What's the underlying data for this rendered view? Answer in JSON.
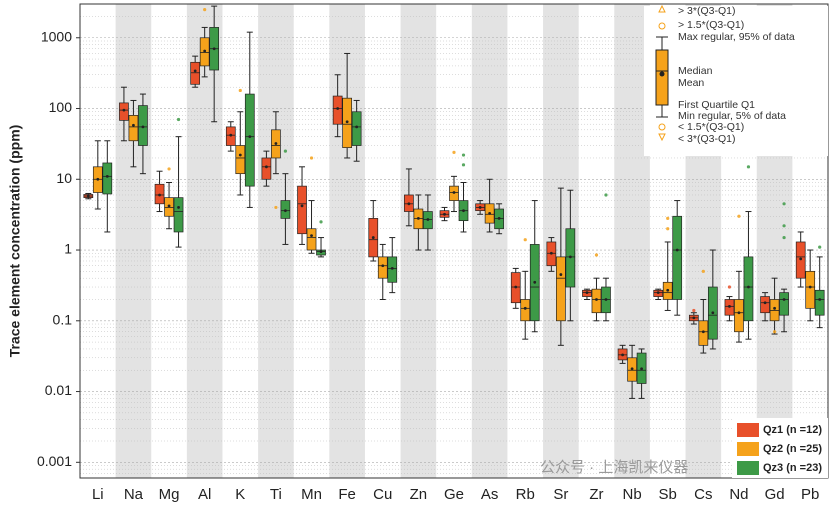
{
  "chart_data": {
    "type": "box",
    "y_label": "Trace element concentration (ppm)",
    "log_scale": true,
    "grid": true,
    "minor_grid": true,
    "legend_position": "lower right",
    "ylim": [
      0.0006,
      3000
    ],
    "yticks": [
      0.001,
      0.01,
      0.1,
      1,
      10,
      100,
      1000
    ],
    "categories": [
      "Li",
      "Na",
      "Mg",
      "Al",
      "K",
      "Ti",
      "Mn",
      "Fe",
      "Cu",
      "Zn",
      "Ge",
      "As",
      "Rb",
      "Sr",
      "Zr",
      "Nb",
      "Sb",
      "Cs",
      "Nd",
      "Gd",
      "Pb"
    ],
    "key": [
      "> 3*(Q3-Q1)",
      "> 1.5*(Q3-Q1)",
      "Max regular, 95% of data",
      "Median",
      "Mean",
      "First Quartile Q1",
      "Min regular, 5% of data",
      "< 1.5*(Q3-Q1)",
      "< 3*(Q3-Q1)"
    ],
    "watermark": "公众号 · 上海凯来仪器",
    "series": [
      {
        "name": "Qz1 (n =12)",
        "color": "#e8502a",
        "low": [
          5.3,
          35,
          3.5,
          200,
          25,
          8,
          1.2,
          40,
          0.7,
          2.2,
          2.6,
          3.2,
          0.15,
          0.5,
          0.2,
          0.025,
          0.2,
          0.09,
          0.1,
          0.1,
          0.3
        ],
        "q1": [
          5.5,
          68,
          4.5,
          220,
          30,
          10,
          1.7,
          60,
          0.8,
          3.5,
          2.9,
          3.6,
          0.18,
          0.6,
          0.22,
          0.028,
          0.22,
          0.1,
          0.12,
          0.13,
          0.4
        ],
        "median": [
          5.8,
          95,
          6,
          320,
          42,
          15,
          4.5,
          100,
          1.4,
          4.5,
          3.2,
          4,
          0.3,
          0.9,
          0.25,
          0.033,
          0.25,
          0.11,
          0.16,
          0.18,
          0.8
        ],
        "q3": [
          6.1,
          120,
          8.5,
          450,
          55,
          20,
          8,
          150,
          2.8,
          6,
          3.6,
          4.5,
          0.48,
          1.3,
          0.27,
          0.04,
          0.27,
          0.12,
          0.2,
          0.22,
          1.3
        ],
        "high": [
          6.3,
          200,
          13,
          550,
          65,
          25,
          15,
          300,
          5,
          14,
          4,
          5,
          0.55,
          1.5,
          0.28,
          0.045,
          0.28,
          0.13,
          0.22,
          0.25,
          1.8
        ],
        "mean": [
          5.8,
          95,
          6,
          340,
          42,
          15,
          4.2,
          100,
          1.5,
          4.5,
          3.2,
          4,
          0.3,
          0.9,
          0.25,
          0.033,
          0.25,
          0.11,
          0.16,
          0.18,
          0.75
        ],
        "outliers": [
          [],
          [],
          [],
          [],
          [],
          [],
          [],
          [],
          [],
          [],
          [],
          [],
          [],
          [],
          [],
          [],
          [],
          [
            0.14
          ],
          [
            0.3
          ],
          [],
          []
        ]
      },
      {
        "name": "Qz2 (n =25)",
        "color": "#f5a21b",
        "low": [
          3.8,
          15,
          2,
          280,
          6,
          12,
          0.9,
          20,
          0.2,
          1,
          3.5,
          1.8,
          0.055,
          0.045,
          0.1,
          0.008,
          0.14,
          0.035,
          0.05,
          0.065,
          0.1
        ],
        "q1": [
          6.5,
          35,
          3,
          400,
          12,
          20,
          1,
          28,
          0.4,
          2,
          5,
          2.4,
          0.1,
          0.1,
          0.13,
          0.014,
          0.2,
          0.045,
          0.07,
          0.1,
          0.15
        ],
        "median": [
          10,
          55,
          4,
          620,
          20,
          30,
          1.5,
          60,
          0.6,
          2.8,
          6.5,
          3.2,
          0.15,
          0.4,
          0.2,
          0.02,
          0.25,
          0.07,
          0.13,
          0.14,
          0.3
        ],
        "q3": [
          15,
          80,
          5.5,
          1000,
          30,
          50,
          2,
          140,
          0.8,
          3.8,
          8,
          4.5,
          0.2,
          0.8,
          0.28,
          0.03,
          0.35,
          0.1,
          0.2,
          0.2,
          0.5
        ],
        "high": [
          35,
          130,
          9,
          1400,
          90,
          90,
          5,
          600,
          1.2,
          6,
          11,
          10,
          0.5,
          7.5,
          0.4,
          0.045,
          1.3,
          0.2,
          0.5,
          0.4,
          1
        ],
        "mean": [
          10,
          58,
          4.2,
          650,
          22,
          32,
          1.6,
          65,
          0.6,
          2.8,
          6.5,
          3.3,
          0.15,
          0.45,
          0.2,
          0.021,
          0.27,
          0.07,
          0.13,
          0.15,
          0.3
        ],
        "outliers": [
          [],
          [],
          [
            14
          ],
          [
            2500
          ],
          [
            180
          ],
          [
            4
          ],
          [
            20
          ],
          [],
          [],
          [],
          [
            24
          ],
          [],
          [
            1.4
          ],
          [],
          [
            0.85
          ],
          [],
          [
            2,
            2.8
          ],
          [
            0.5
          ],
          [
            3
          ],
          [
            0.07
          ],
          []
        ]
      },
      {
        "name": "Qz3 (n =23)",
        "color": "#3d9a47",
        "low": [
          1.8,
          12,
          1.1,
          65,
          4,
          1.2,
          0.8,
          18,
          0.25,
          1,
          1.8,
          1.7,
          0.07,
          0.1,
          0.1,
          0.008,
          0.12,
          0.04,
          0.055,
          0.07,
          0.08
        ],
        "q1": [
          6.2,
          30,
          1.8,
          350,
          8,
          2.8,
          0.85,
          30,
          0.35,
          2,
          2.6,
          2,
          0.1,
          0.3,
          0.13,
          0.013,
          0.2,
          0.055,
          0.1,
          0.12,
          0.12
        ],
        "median": [
          11,
          55,
          3.5,
          700,
          40,
          3.6,
          0.95,
          55,
          0.55,
          2.7,
          3.6,
          2.8,
          0.3,
          0.8,
          0.2,
          0.02,
          1,
          0.12,
          0.3,
          0.2,
          0.2
        ],
        "q3": [
          17,
          110,
          5.5,
          1400,
          160,
          5,
          1,
          90,
          0.8,
          3.5,
          5,
          3.8,
          1.2,
          2,
          0.3,
          0.035,
          3,
          0.3,
          0.8,
          0.25,
          0.27
        ],
        "high": [
          35,
          160,
          40,
          2800,
          1200,
          12,
          1.5,
          130,
          1.5,
          6,
          9,
          4.5,
          5,
          7,
          0.4,
          0.04,
          5,
          1,
          3.5,
          0.28,
          0.8
        ],
        "mean": [
          11,
          55,
          4,
          700,
          40,
          3.6,
          0.95,
          55,
          0.55,
          2.7,
          3.6,
          2.8,
          0.35,
          0.8,
          0.2,
          0.021,
          1,
          0.13,
          0.3,
          0.2,
          0.2
        ],
        "outliers": [
          [],
          [],
          [
            70
          ],
          [],
          [],
          [
            25
          ],
          [
            2.5
          ],
          [
            40
          ],
          [],
          [],
          [
            16,
            22
          ],
          [],
          [],
          [],
          [
            6
          ],
          [],
          [],
          [],
          [
            15
          ],
          [
            1.5,
            2.2,
            4.5
          ],
          [
            1.1
          ]
        ]
      }
    ]
  }
}
